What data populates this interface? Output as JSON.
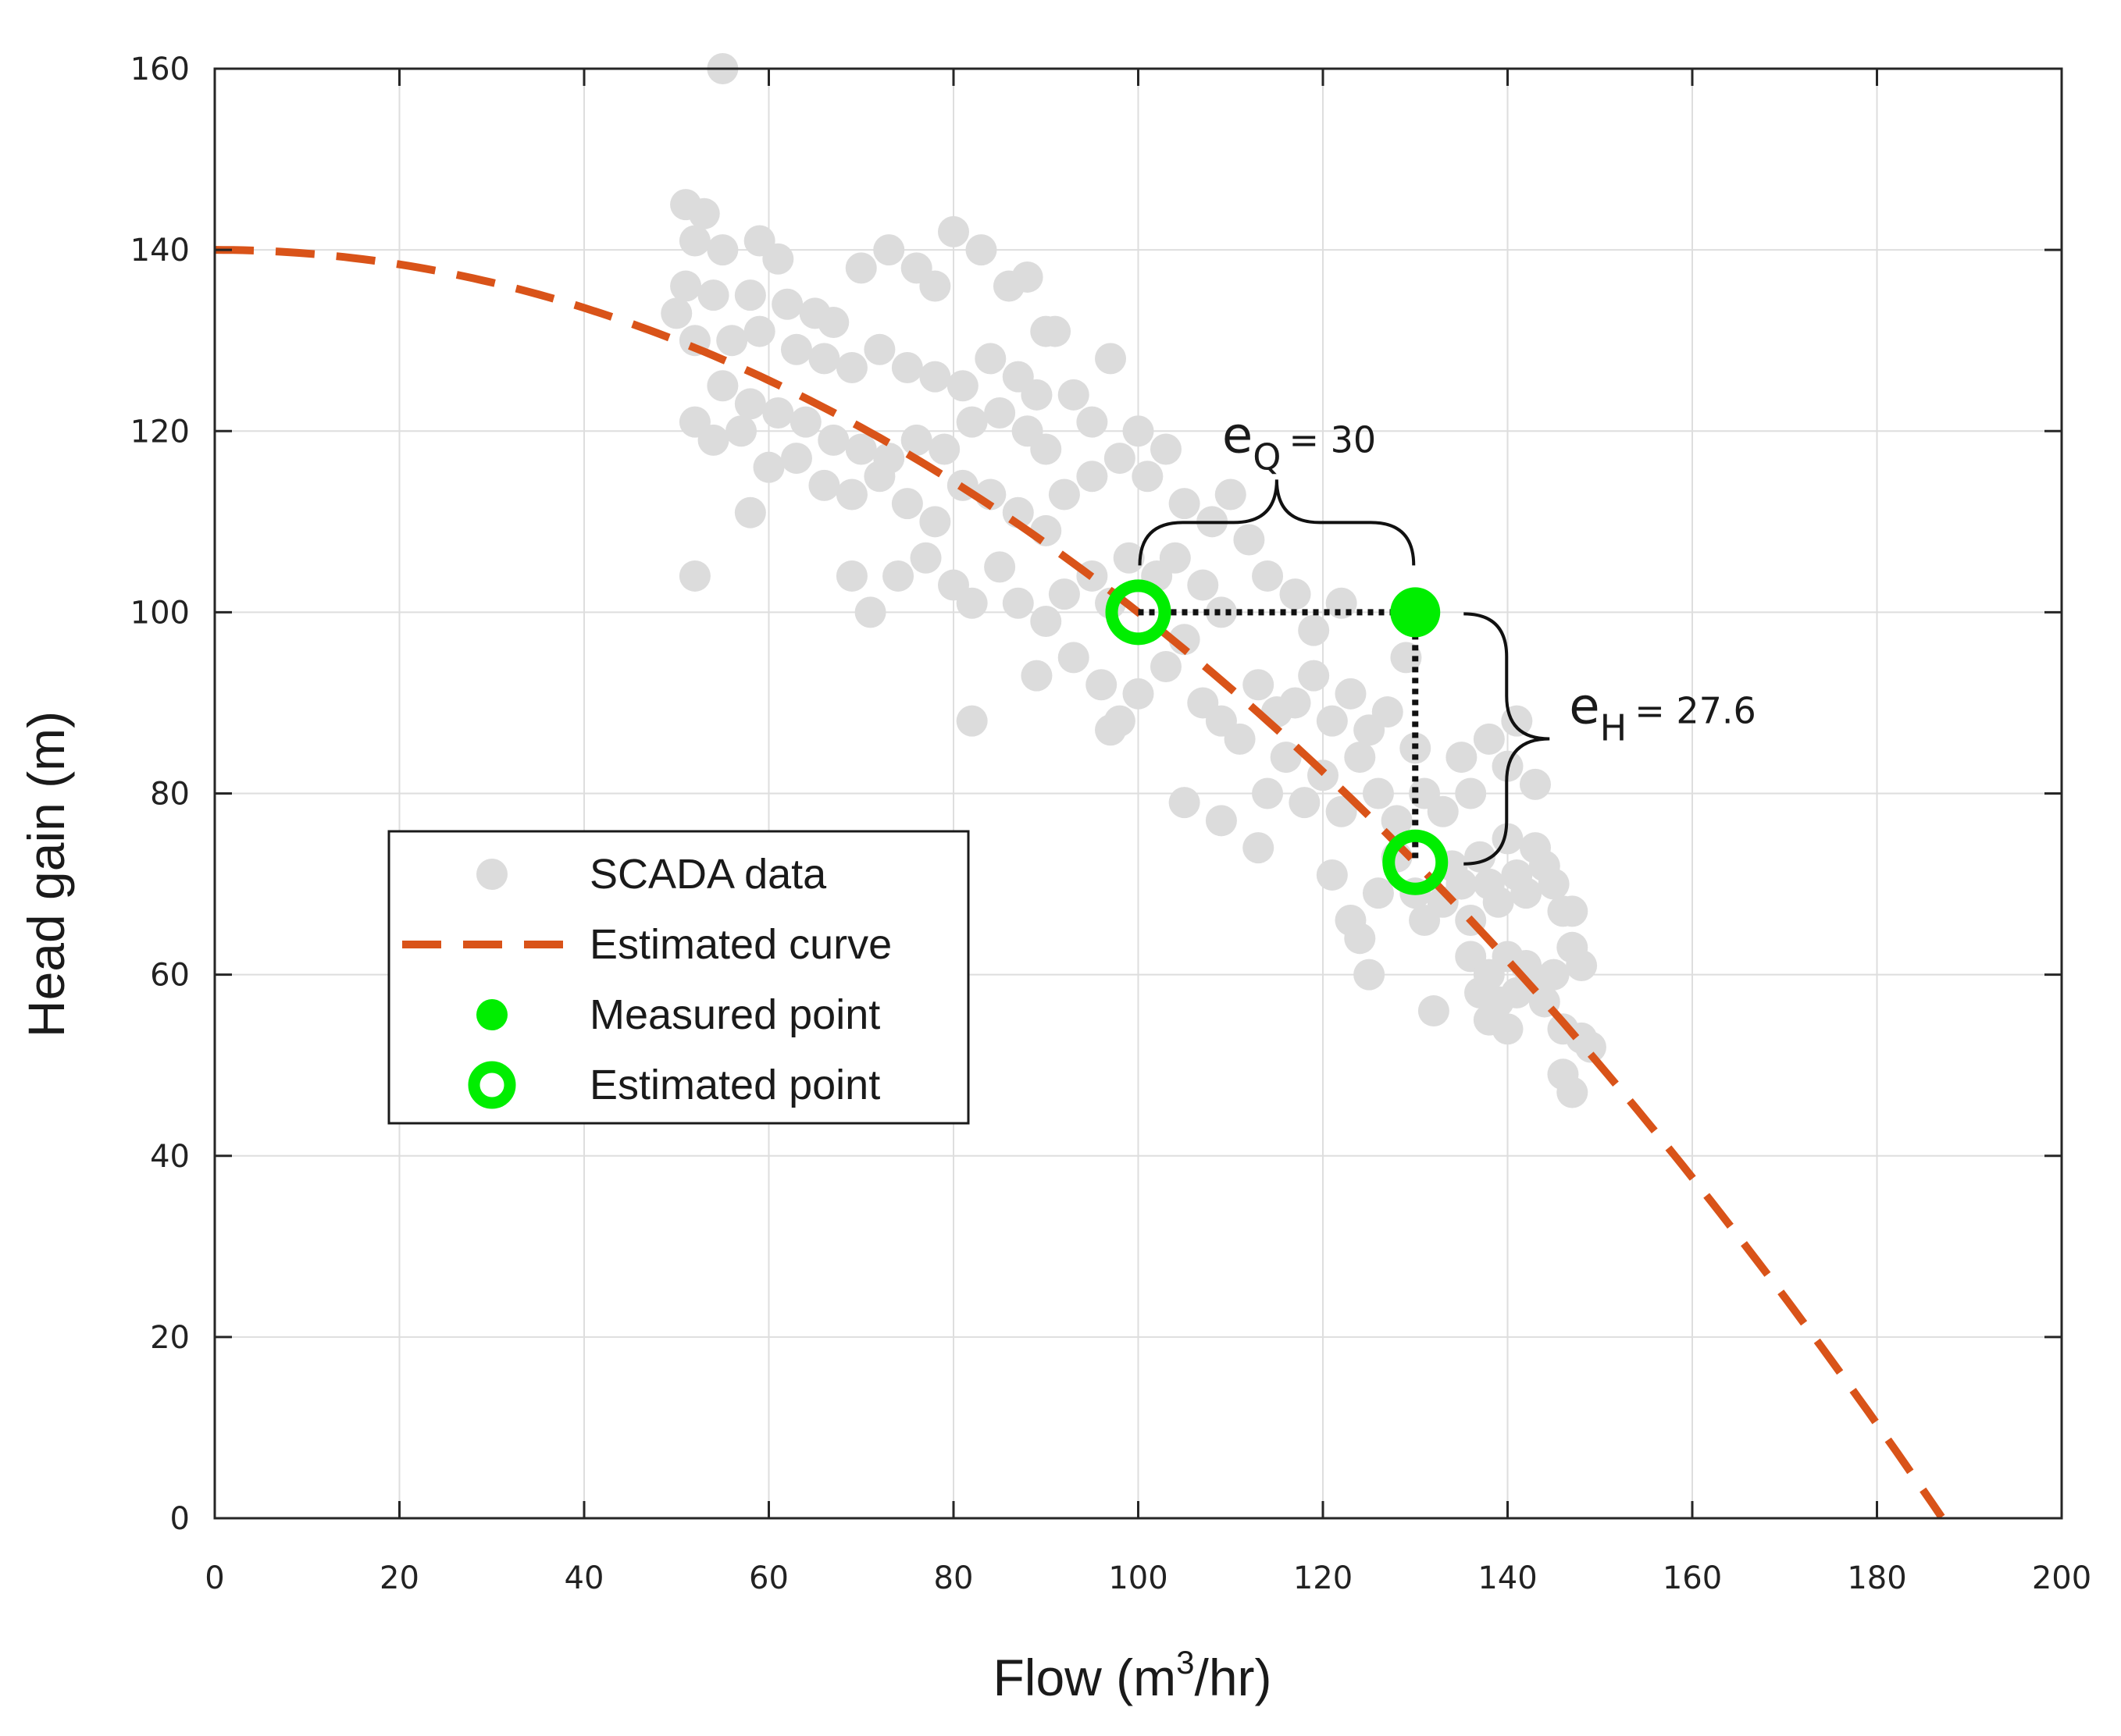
{
  "chart_data": {
    "type": "scatter",
    "title": "",
    "xlabel": {
      "prefix": "Flow (m",
      "sup": "3",
      "suffix": "/hr)"
    },
    "ylabel": "Head gain (m)",
    "xlim": [
      0,
      200
    ],
    "ylim": [
      0,
      160
    ],
    "xticks": [
      0,
      20,
      40,
      60,
      80,
      100,
      120,
      140,
      160,
      180,
      200
    ],
    "yticks": [
      0,
      20,
      40,
      60,
      80,
      100,
      120,
      140,
      160
    ],
    "grid": true,
    "legend_position": "center-left",
    "colors": {
      "scada": "#dcdcdc",
      "curve": "#d95319",
      "point": "#00ee00",
      "axis": "#262626",
      "grid": "#dedede",
      "annotation": "#111111"
    },
    "series": [
      {
        "name": "SCADA data",
        "kind": "scatter",
        "points": [
          [
            55,
            160
          ],
          [
            51,
            145
          ],
          [
            53,
            144
          ],
          [
            52,
            141
          ],
          [
            55,
            140
          ],
          [
            59,
            141
          ],
          [
            61,
            139
          ],
          [
            51,
            136
          ],
          [
            54,
            135
          ],
          [
            58,
            135
          ],
          [
            62,
            134
          ],
          [
            65,
            133
          ],
          [
            67,
            132
          ],
          [
            70,
            138
          ],
          [
            73,
            140
          ],
          [
            76,
            138
          ],
          [
            78,
            136
          ],
          [
            80,
            142
          ],
          [
            83,
            140
          ],
          [
            86,
            136
          ],
          [
            88,
            137
          ],
          [
            90,
            131
          ],
          [
            91,
            131
          ],
          [
            50,
            133
          ],
          [
            52,
            130
          ],
          [
            56,
            130
          ],
          [
            59,
            131
          ],
          [
            63,
            129
          ],
          [
            66,
            128
          ],
          [
            69,
            127
          ],
          [
            72,
            129
          ],
          [
            75,
            127
          ],
          [
            78,
            126
          ],
          [
            81,
            125
          ],
          [
            84,
            128
          ],
          [
            87,
            126
          ],
          [
            89,
            124
          ],
          [
            55,
            125
          ],
          [
            58,
            123
          ],
          [
            61,
            122
          ],
          [
            64,
            121
          ],
          [
            67,
            119
          ],
          [
            70,
            118
          ],
          [
            73,
            117
          ],
          [
            76,
            119
          ],
          [
            79,
            118
          ],
          [
            82,
            121
          ],
          [
            85,
            122
          ],
          [
            88,
            120
          ],
          [
            90,
            118
          ],
          [
            93,
            124
          ],
          [
            95,
            121
          ],
          [
            97,
            128
          ],
          [
            52,
            121
          ],
          [
            54,
            119
          ],
          [
            57,
            120
          ],
          [
            60,
            116
          ],
          [
            63,
            117
          ],
          [
            66,
            114
          ],
          [
            69,
            113
          ],
          [
            72,
            115
          ],
          [
            75,
            112
          ],
          [
            78,
            110
          ],
          [
            81,
            114
          ],
          [
            84,
            113
          ],
          [
            87,
            111
          ],
          [
            90,
            109
          ],
          [
            92,
            113
          ],
          [
            95,
            115
          ],
          [
            98,
            117
          ],
          [
            100,
            120
          ],
          [
            101,
            115
          ],
          [
            103,
            118
          ],
          [
            105,
            112
          ],
          [
            108,
            110
          ],
          [
            110,
            113
          ],
          [
            58,
            111
          ],
          [
            52,
            104
          ],
          [
            69,
            104
          ],
          [
            71,
            100
          ],
          [
            74,
            104
          ],
          [
            77,
            106
          ],
          [
            80,
            103
          ],
          [
            82,
            101
          ],
          [
            85,
            105
          ],
          [
            87,
            101
          ],
          [
            90,
            99
          ],
          [
            92,
            102
          ],
          [
            95,
            104
          ],
          [
            97,
            101
          ],
          [
            99,
            106
          ],
          [
            102,
            104
          ],
          [
            104,
            106
          ],
          [
            107,
            103
          ],
          [
            109,
            100
          ],
          [
            112,
            108
          ],
          [
            114,
            104
          ],
          [
            117,
            102
          ],
          [
            119,
            98
          ],
          [
            122,
            101
          ],
          [
            89,
            93
          ],
          [
            93,
            95
          ],
          [
            96,
            92
          ],
          [
            98,
            88
          ],
          [
            100,
            91
          ],
          [
            103,
            94
          ],
          [
            105,
            97
          ],
          [
            107,
            90
          ],
          [
            109,
            88
          ],
          [
            111,
            86
          ],
          [
            113,
            92
          ],
          [
            115,
            89
          ],
          [
            117,
            90
          ],
          [
            119,
            93
          ],
          [
            121,
            88
          ],
          [
            123,
            91
          ],
          [
            125,
            87
          ],
          [
            127,
            89
          ],
          [
            129,
            95
          ],
          [
            97,
            87
          ],
          [
            82,
            88
          ],
          [
            105,
            79
          ],
          [
            109,
            77
          ],
          [
            113,
            74
          ],
          [
            114,
            80
          ],
          [
            116,
            84
          ],
          [
            118,
            79
          ],
          [
            120,
            82
          ],
          [
            122,
            78
          ],
          [
            124,
            84
          ],
          [
            126,
            80
          ],
          [
            128,
            77
          ],
          [
            130,
            85
          ],
          [
            131,
            80
          ],
          [
            133,
            78
          ],
          [
            135,
            84
          ],
          [
            136,
            80
          ],
          [
            138,
            86
          ],
          [
            140,
            83
          ],
          [
            141,
            88
          ],
          [
            143,
            81
          ],
          [
            121,
            71
          ],
          [
            123,
            66
          ],
          [
            124,
            64
          ],
          [
            125,
            60
          ],
          [
            126,
            69
          ],
          [
            128,
            73
          ],
          [
            130,
            69
          ],
          [
            131,
            66
          ],
          [
            133,
            68
          ],
          [
            134,
            72
          ],
          [
            135,
            70
          ],
          [
            136,
            66
          ],
          [
            137,
            73
          ],
          [
            138,
            70
          ],
          [
            139,
            68
          ],
          [
            140,
            75
          ],
          [
            141,
            71
          ],
          [
            142,
            69
          ],
          [
            143,
            74
          ],
          [
            144,
            72
          ],
          [
            145,
            70
          ],
          [
            146,
            67
          ],
          [
            147,
            67
          ],
          [
            132,
            56
          ],
          [
            136,
            62
          ],
          [
            137,
            58
          ],
          [
            138,
            60
          ],
          [
            139,
            57
          ],
          [
            140,
            62
          ],
          [
            141,
            58
          ],
          [
            142,
            61
          ],
          [
            143,
            59
          ],
          [
            144,
            57
          ],
          [
            145,
            60
          ],
          [
            147,
            63
          ],
          [
            148,
            61
          ],
          [
            146,
            54
          ],
          [
            148,
            53
          ],
          [
            149,
            52
          ],
          [
            146,
            49
          ],
          [
            147,
            47
          ],
          [
            138,
            55
          ],
          [
            140,
            54
          ]
        ]
      },
      {
        "name": "Estimated curve",
        "kind": "curve",
        "equation": "H = 140 - 0.0040 * Q^2",
        "x_range": [
          0,
          187
        ]
      },
      {
        "name": "Measured point",
        "kind": "marker",
        "points": [
          [
            130,
            100
          ]
        ]
      },
      {
        "name": "Estimated point",
        "kind": "marker",
        "points": [
          [
            100,
            100
          ],
          [
            130,
            72.4
          ]
        ]
      }
    ],
    "annotations": [
      {
        "name": "eQ",
        "symbol": "e",
        "subscript": "Q",
        "text": "= 30",
        "value": 30,
        "from": [
          100,
          100
        ],
        "to": [
          130,
          100
        ]
      },
      {
        "name": "eH",
        "symbol": "e",
        "subscript": "H",
        "text": "= 27.6",
        "value": 27.6,
        "from": [
          130,
          100
        ],
        "to": [
          130,
          72.4
        ]
      }
    ]
  }
}
